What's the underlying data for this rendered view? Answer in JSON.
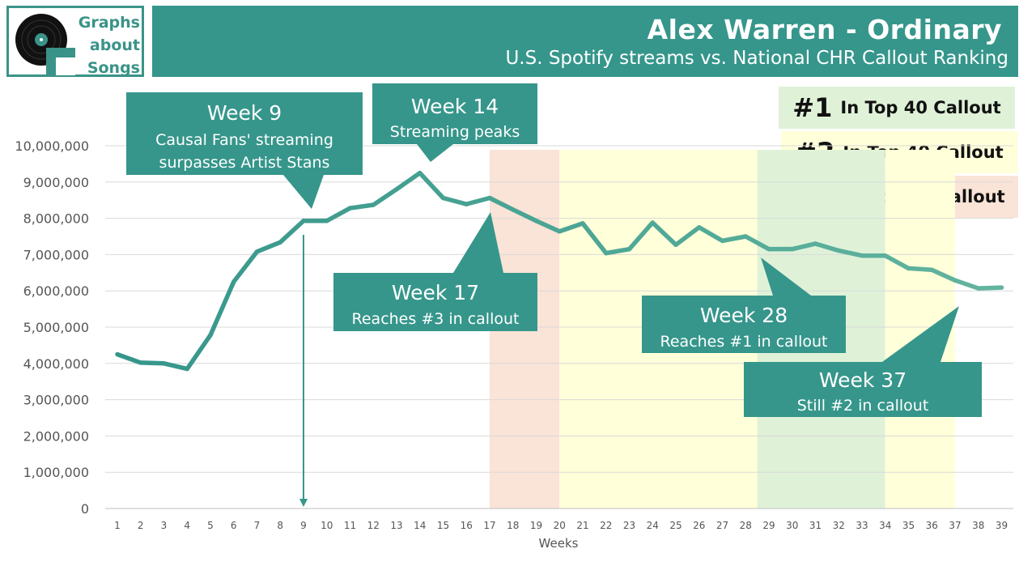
{
  "logo": {
    "line1": "Graphs",
    "line2": "about",
    "line3": "Songs"
  },
  "header": {
    "title": "Alex Warren - Ordinary",
    "subtitle": "U.S. Spotify streams vs. National CHR Callout Ranking"
  },
  "legend": [
    {
      "rank": "#1",
      "label": "In Top 40 Callout",
      "color": "#dff2d8"
    },
    {
      "rank": "#2",
      "label": "In Top 40 Callout",
      "color": "#ffffd9"
    },
    {
      "rank": "#3",
      "label": "In Top 40 Callout",
      "color": "#fae3d7"
    }
  ],
  "chart_data": {
    "type": "line",
    "xlabel": "Weeks",
    "ylabel": "",
    "ylim": [
      0,
      10000000
    ],
    "yticks": [
      "0",
      "1,000,000",
      "2,000,000",
      "3,000,000",
      "4,000,000",
      "5,000,000",
      "6,000,000",
      "7,000,000",
      "8,000,000",
      "9,000,000",
      "10,000,000"
    ],
    "x": [
      1,
      2,
      3,
      4,
      5,
      6,
      7,
      8,
      9,
      10,
      11,
      12,
      13,
      14,
      15,
      16,
      17,
      18,
      19,
      20,
      21,
      22,
      23,
      24,
      25,
      26,
      27,
      28,
      29,
      30,
      31,
      32,
      33,
      34,
      35,
      36,
      37,
      38,
      39
    ],
    "series": [
      {
        "name": "",
        "color": "#3a9388",
        "values": [
          4250000,
          4020000,
          4000000,
          3850000,
          4780000,
          6250000,
          7080000,
          7340000,
          7930000,
          7930000,
          8280000,
          8370000,
          8800000,
          9250000,
          8560000,
          8390000,
          8560000,
          8240000,
          7930000,
          7640000,
          7860000,
          7040000,
          7150000,
          7880000,
          7270000,
          7750000,
          7380000,
          7500000,
          7150000,
          7150000,
          7300000,
          7110000,
          6970000,
          6970000,
          6620000,
          6580000,
          6290000,
          6070000,
          6090000
        ]
      }
    ],
    "bands": [
      {
        "rank": "#3",
        "from": 17,
        "to": 20,
        "color": "#fae3d7"
      },
      {
        "rank": "#2",
        "from": 20,
        "to": 28.5,
        "color": "#ffffd9"
      },
      {
        "rank": "#1",
        "from": 28.5,
        "to": 34,
        "color": "#dff2d8"
      },
      {
        "rank": "#2",
        "from": 34,
        "to": 37,
        "color": "#ffffd9"
      }
    ],
    "annotations": [
      {
        "week": "Week 9",
        "text1": "Causal Fans' streaming",
        "text2": "surpasses Artist Stans"
      },
      {
        "week": "Week 14",
        "text1": "Streaming peaks"
      },
      {
        "week": "Week 17",
        "text1": "Reaches #3 in callout"
      },
      {
        "week": "Week 28",
        "text1": "Reaches #1 in callout"
      },
      {
        "week": "Week 37",
        "text1": "Still #2 in callout"
      }
    ]
  }
}
